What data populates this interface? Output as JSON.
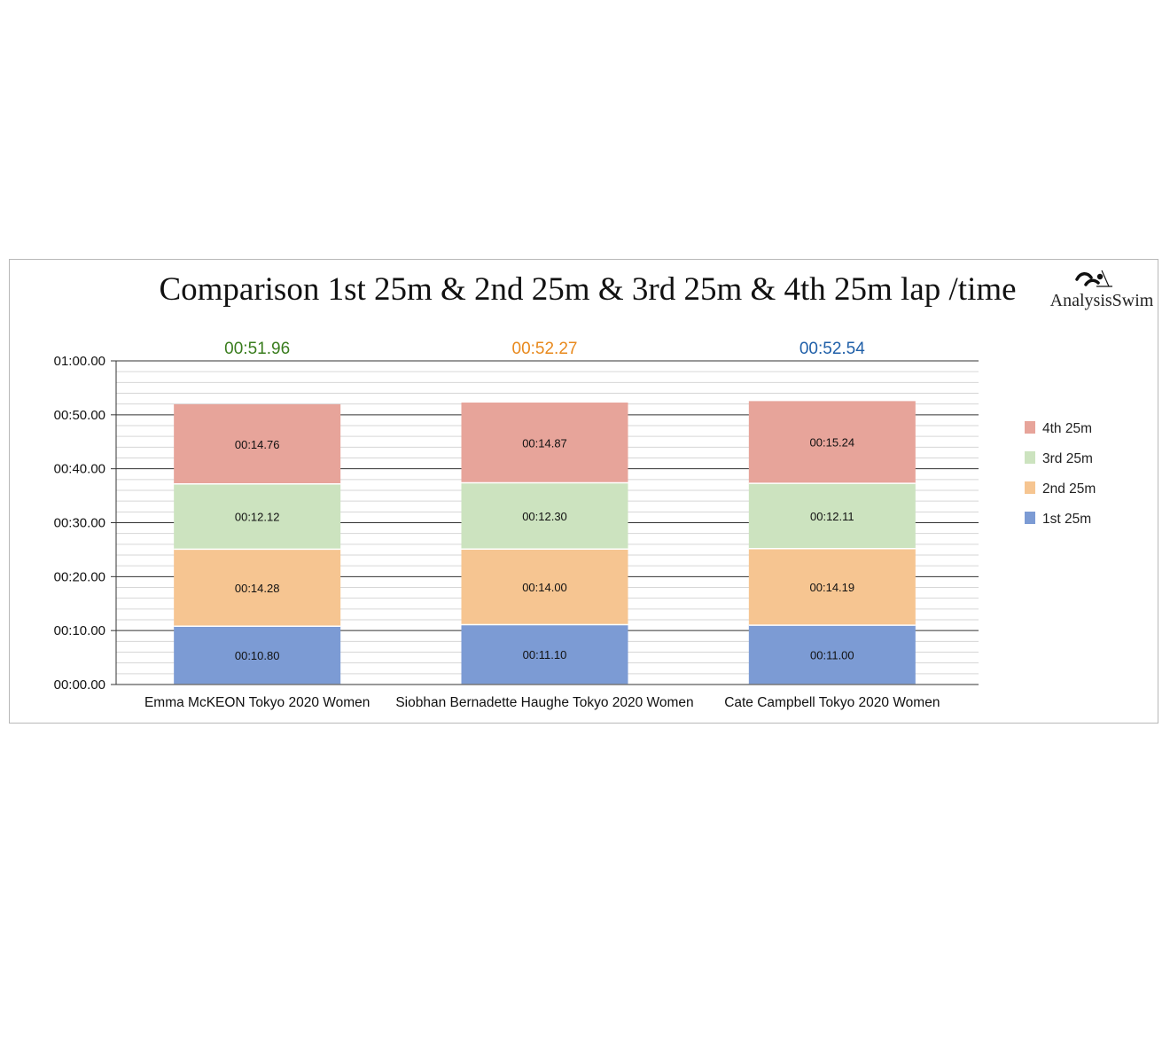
{
  "chart_data": {
    "type": "bar",
    "stacked": true,
    "title": "Comparison 1st 25m & 2nd 25m & 3rd 25m & 4th 25m lap /time",
    "categories": [
      "Emma McKEON Tokyo 2020 Women",
      "Siobhan Bernadette Haughe Tokyo 2020 Women",
      "Cate Campbell Tokyo 2020 Women"
    ],
    "series": [
      {
        "name": "1st 25m",
        "values": [
          10.8,
          11.1,
          11.0
        ],
        "labels": [
          "00:10.80",
          "00:11.10",
          "00:11.00"
        ],
        "color": "#7c9bd4"
      },
      {
        "name": "2nd 25m",
        "values": [
          14.28,
          14.0,
          14.19
        ],
        "labels": [
          "00:14.28",
          "00:14.00",
          "00:14.19"
        ],
        "color": "#f6c591"
      },
      {
        "name": "3rd 25m",
        "values": [
          12.12,
          12.3,
          12.11
        ],
        "labels": [
          "00:12.12",
          "00:12.30",
          "00:12.11"
        ],
        "color": "#cce3bf"
      },
      {
        "name": "4th 25m",
        "values": [
          14.76,
          14.87,
          15.24
        ],
        "labels": [
          "00:14.76",
          "00:14.87",
          "00:15.24"
        ],
        "color": "#e7a49a"
      }
    ],
    "totals": [
      {
        "label": "00:51.96",
        "color": "#3a7d1e"
      },
      {
        "label": "00:52.27",
        "color": "#e8891d"
      },
      {
        "label": "00:52.54",
        "color": "#1f5fa8"
      }
    ],
    "ylim": [
      0,
      60
    ],
    "yticks": [
      0,
      10,
      20,
      30,
      40,
      50,
      60
    ],
    "ytick_labels": [
      "00:00.00",
      "00:10.00",
      "00:20.00",
      "00:30.00",
      "00:40.00",
      "00:50.00",
      "01:00.00"
    ],
    "grid": true,
    "legend_position": "right",
    "legend_order": [
      "4th 25m",
      "3rd 25m",
      "2nd 25m",
      "1st 25m"
    ]
  },
  "logo": {
    "text": "AnalysisSwim",
    "icon": "swimmer-icon"
  }
}
